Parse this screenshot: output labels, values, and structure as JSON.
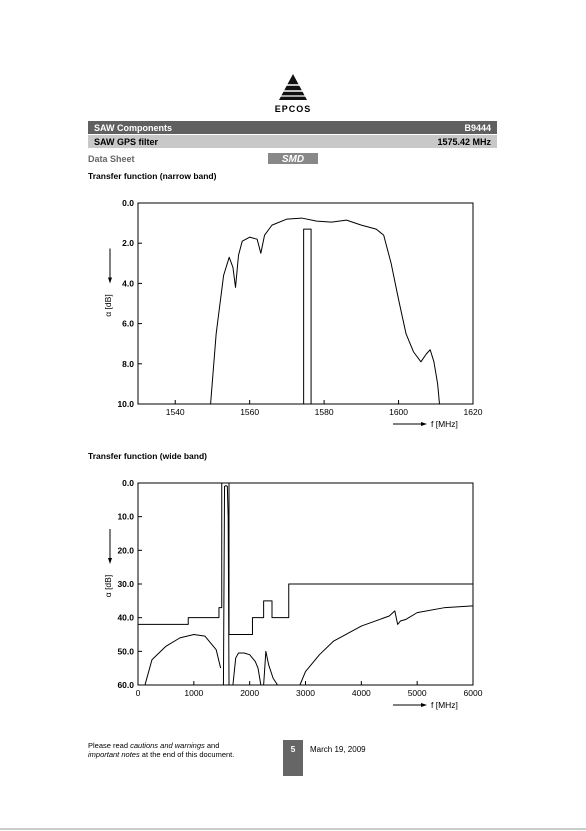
{
  "header": {
    "company": "EPCOS",
    "product_group": "SAW Components",
    "part_number": "B9444",
    "product": "SAW GPS filter",
    "frequency": "1575.42 MHz",
    "doc_type": "Data Sheet",
    "package_logo": "SMD"
  },
  "chart_data": [
    {
      "type": "line",
      "title": "Transfer function (narrow band)",
      "x_label": "f [MHz]",
      "y_label": "α [dB]",
      "xlim": [
        1530,
        1620
      ],
      "xticks": [
        1540,
        1560,
        1580,
        1600,
        1620
      ],
      "ylim": [
        0,
        10
      ],
      "y_inverted": true,
      "yticks": [
        {
          "value": 0,
          "label": "0.0"
        },
        {
          "value": 2,
          "label": "2.0"
        },
        {
          "value": 4,
          "label": "4.0"
        },
        {
          "value": 6,
          "label": "6.0"
        },
        {
          "value": 8,
          "label": "8.0"
        },
        {
          "value": 10,
          "label": "10.0"
        }
      ],
      "grid": false,
      "series": [
        {
          "color": "#000000",
          "x": [
            1549.5,
            1551,
            1553,
            1554.5,
            1555.5,
            1556.2,
            1557,
            1558,
            1560,
            1562,
            1563,
            1564,
            1566,
            1570,
            1574,
            1578,
            1582,
            1586,
            1590,
            1594,
            1596,
            1598,
            1600,
            1602,
            1604,
            1606,
            1607.5,
            1608.5,
            1609.5,
            1610.5,
            1611
          ],
          "values": [
            10,
            6.5,
            3.6,
            2.7,
            3.2,
            4.2,
            2.6,
            1.9,
            1.7,
            1.8,
            2.5,
            1.6,
            1.1,
            0.8,
            0.75,
            0.9,
            0.95,
            0.85,
            1.1,
            1.3,
            1.6,
            3.0,
            4.8,
            6.5,
            7.4,
            7.9,
            7.5,
            7.3,
            7.9,
            9.0,
            10
          ]
        },
        {
          "color": "#000000",
          "x": [
            1574.5,
            1574.5,
            1576.5,
            1576.5
          ],
          "values": [
            10,
            1.3,
            1.3,
            10
          ]
        }
      ]
    },
    {
      "type": "line",
      "title": "Transfer function (wide band)",
      "x_label": "f [MHz]",
      "y_label": "α [dB]",
      "xlim": [
        0,
        6000
      ],
      "xticks": [
        0,
        1000,
        2000,
        3000,
        4000,
        5000,
        6000
      ],
      "ylim": [
        0,
        60
      ],
      "y_inverted": true,
      "yticks": [
        {
          "value": 0,
          "label": "0.0"
        },
        {
          "value": 10,
          "label": "10.0"
        },
        {
          "value": 20,
          "label": "20.0"
        },
        {
          "value": 30,
          "label": "30.0"
        },
        {
          "value": 40,
          "label": "40.0"
        },
        {
          "value": 50,
          "label": "50.0"
        },
        {
          "value": 60,
          "label": "60.0"
        }
      ],
      "grid": false,
      "series": [
        {
          "color": "#000000",
          "x": [
            125,
            250,
            500,
            750,
            1000,
            1200,
            1400,
            1480,
            1500,
            1530,
            1550,
            1575,
            1600,
            1615,
            1630,
            1660,
            1700,
            1750,
            1800,
            1900,
            2000,
            2100,
            2150,
            2200,
            2240,
            2250,
            2290,
            2340,
            2420,
            2500,
            2540,
            2900,
            3000,
            3250,
            3500,
            4000,
            4500,
            4600,
            4650,
            4700,
            4800,
            5000,
            5500,
            6000
          ],
          "values": [
            60,
            52.5,
            48.5,
            46,
            45,
            45.5,
            49.5,
            55,
            null,
            60,
            1,
            0.8,
            1,
            10,
            60,
            null,
            60,
            52,
            50.5,
            50.5,
            51,
            53,
            55,
            60,
            null,
            60,
            50,
            54,
            58,
            60,
            null,
            60,
            56,
            51,
            47,
            42.5,
            39.5,
            38,
            42,
            41,
            40.5,
            38.5,
            37,
            36.5
          ]
        },
        {
          "color": "#000000",
          "x": [
            0,
            900,
            900,
            1450,
            1450,
            1500,
            1500,
            1630,
            1630,
            2050,
            2050,
            2250,
            2250,
            2400,
            2400,
            2700,
            2700,
            6000
          ],
          "values": [
            42,
            42,
            40,
            40,
            37,
            37,
            0,
            0,
            45,
            45,
            40,
            40,
            35,
            35,
            40,
            40,
            30,
            30
          ]
        }
      ]
    }
  ],
  "footer": {
    "note": [
      [
        "Please read ",
        "cautions and warnings",
        " and"
      ],
      [
        "important notes",
        " at the end of this document."
      ]
    ],
    "page": "5",
    "date": "March 19, 2009"
  }
}
